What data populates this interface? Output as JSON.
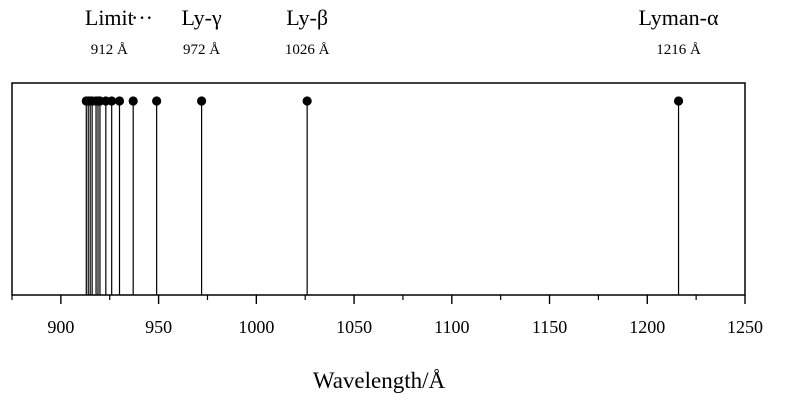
{
  "chart_data": {
    "type": "scatter",
    "title": "",
    "xlabel": "Wavelength/Å",
    "ylabel": "",
    "xlim": [
      875,
      1250
    ],
    "xticks": [
      900,
      950,
      1000,
      1050,
      1100,
      1150,
      1200,
      1250
    ],
    "grid": false,
    "legend": "none",
    "marker_color": "#000000",
    "lines": [
      {
        "wavelength": 1216
      },
      {
        "wavelength": 1026
      },
      {
        "wavelength": 972
      },
      {
        "wavelength": 949
      },
      {
        "wavelength": 937
      },
      {
        "wavelength": 930
      },
      {
        "wavelength": 926
      },
      {
        "wavelength": 923
      },
      {
        "wavelength": 920
      },
      {
        "wavelength": 919
      },
      {
        "wavelength": 918
      },
      {
        "wavelength": 916
      },
      {
        "wavelength": 915
      },
      {
        "wavelength": 914
      },
      {
        "wavelength": 913
      }
    ],
    "annotations": [
      {
        "name": "Limit",
        "value": "912 Å",
        "wavelength": 912
      },
      {
        "name": "···",
        "value": "",
        "wavelength": 942
      },
      {
        "name": "Ly-γ",
        "value": "972 Å",
        "wavelength": 972
      },
      {
        "name": "Ly-β",
        "value": "1026 Å",
        "wavelength": 1026
      },
      {
        "name": "Lyman-α",
        "value": "1216 Å",
        "wavelength": 1216
      }
    ]
  }
}
